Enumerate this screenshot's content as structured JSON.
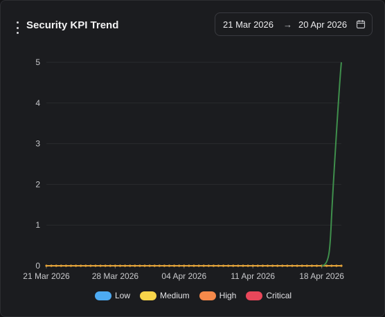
{
  "widget": {
    "title": "Security KPI Trend",
    "menu_icon": "kebab-menu-icon"
  },
  "date_range": {
    "start": "21 Mar 2026",
    "separator": "→",
    "end": "20 Apr 2026",
    "icon": "calendar-icon"
  },
  "colors": {
    "background": "#1b1c1f",
    "grid": "#2a2b2f",
    "axis_text": "#c8c9cc",
    "low": "#4daaf2",
    "medium": "#f7d54a",
    "high": "#f5894a",
    "critical": "#e9475a",
    "trend_line": "#3f8f4c",
    "flat_line": "#e6a53a"
  },
  "chart_data": {
    "type": "line",
    "title": "Security KPI Trend",
    "x_ticks": [
      "21 Mar 2026",
      "28 Mar 2026",
      "04 Apr 2026",
      "11 Apr 2026",
      "18 Apr 2026"
    ],
    "y_ticks": [
      0,
      1,
      2,
      3,
      4,
      5
    ],
    "ylim": [
      0,
      5
    ],
    "xlim": [
      "21 Mar 2026",
      "20 Apr 2026"
    ],
    "grid": true,
    "legend_position": "bottom",
    "legend": [
      {
        "label": "Low",
        "color": "#4daaf2"
      },
      {
        "label": "Medium",
        "color": "#f7d54a"
      },
      {
        "label": "High",
        "color": "#f5894a"
      },
      {
        "label": "Critical",
        "color": "#e9475a"
      }
    ],
    "series": [
      {
        "color": "#3f8f4c",
        "points": [
          {
            "x": "18 Apr 2026",
            "y": 0
          },
          {
            "x": "19 Apr 2026",
            "y": 1.2
          },
          {
            "x": "20 Apr 2026",
            "y": 5
          }
        ]
      },
      {
        "color": "#e6a53a",
        "points": [
          {
            "x": "21 Mar 2026",
            "y": 0
          },
          {
            "x": "20 Apr 2026",
            "y": 0
          }
        ]
      }
    ]
  }
}
